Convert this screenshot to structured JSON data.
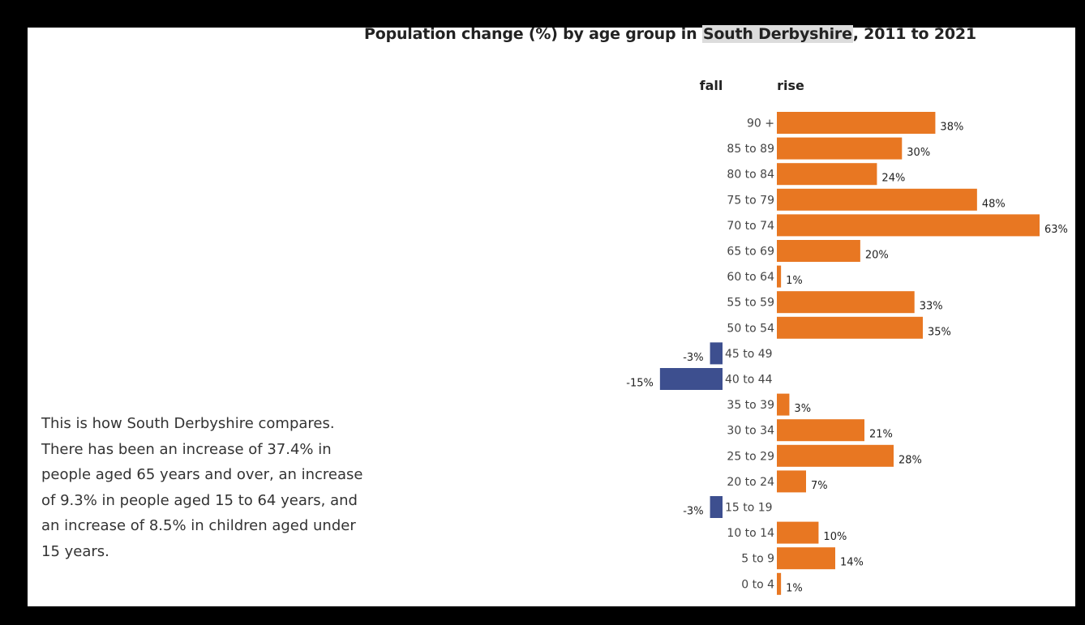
{
  "chart_data": {
    "type": "bar",
    "orientation": "horizontal",
    "title_parts": [
      "Population change (%) by age group in ",
      "South Derbyshire",
      ", 2011 to 2021"
    ],
    "header_fall": "fall",
    "header_rise": "rise",
    "categories": [
      "90 +",
      "85 to 89",
      "80 to 84",
      "75 to 79",
      "70 to 74",
      "65 to 69",
      "60 to 64",
      "55 to 59",
      "50 to 54",
      "45 to 49",
      "40 to 44",
      "35 to 39",
      "30 to 34",
      "25 to 29",
      "20 to 24",
      "15 to 19",
      "10 to 14",
      "5 to 9",
      "0 to 4"
    ],
    "values": [
      38,
      30,
      24,
      48,
      63,
      20,
      1,
      33,
      35,
      -3,
      -15,
      3,
      21,
      28,
      7,
      -3,
      10,
      14,
      1
    ],
    "labels": [
      "38%",
      "30%",
      "24%",
      "48%",
      "63%",
      "20%",
      "1%",
      "33%",
      "35%",
      "-3%",
      "-15%",
      "3%",
      "21%",
      "28%",
      "7%",
      "-3%",
      "10%",
      "14%",
      "1%"
    ],
    "colors": {
      "rise": "#E87722",
      "fall": "#3D4F8F"
    }
  },
  "description": "This is how South Derbyshire compares. There has been an increase of 37.4% in people aged 65 years and over, an increase of 9.3% in people aged 15 to 64 years, and an increase of 8.5% in children aged under 15 years."
}
